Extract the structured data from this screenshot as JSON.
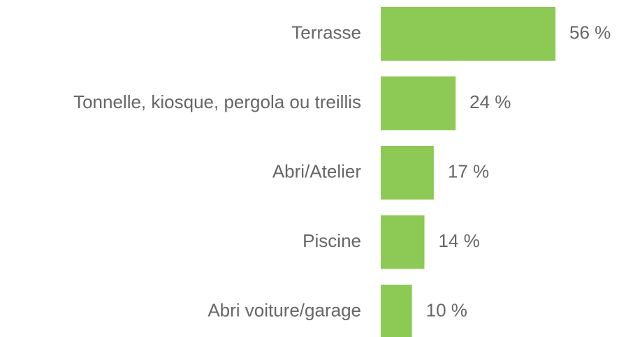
{
  "chart_data": {
    "type": "bar",
    "orientation": "horizontal",
    "categories": [
      "Terrasse",
      "Tonnelle, kiosque, pergola ou treillis",
      "Abri/Atelier",
      "Piscine",
      "Abri voiture/garage"
    ],
    "values": [
      56,
      24,
      17,
      14,
      10
    ],
    "value_labels": [
      "56 %",
      "24 %",
      "17 %",
      "14 %",
      "10 %"
    ],
    "color": "#8cc955"
  }
}
